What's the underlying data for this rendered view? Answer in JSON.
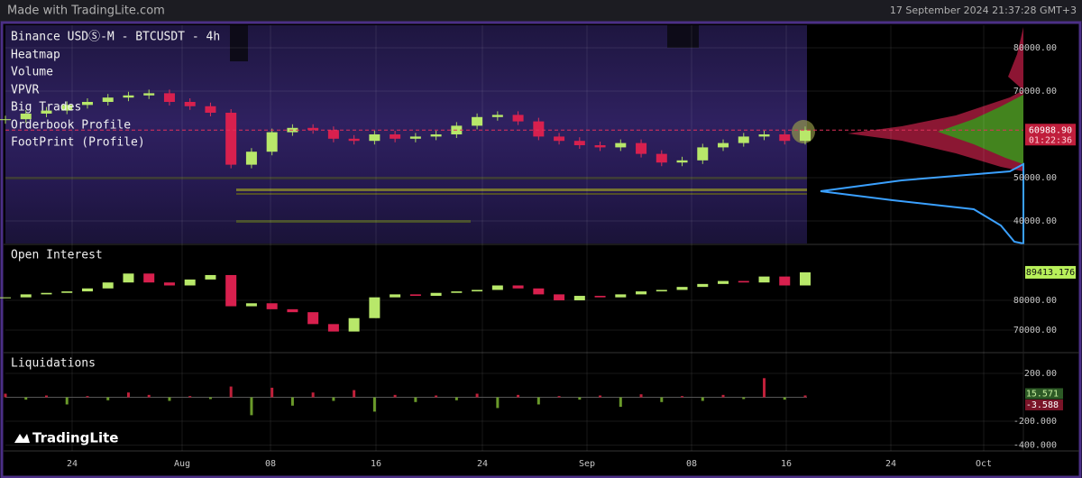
{
  "header": {
    "watermark": "Made with TradingLite.com",
    "timestamp": "17 September 2024 21:37:28 GMT+3"
  },
  "main_panel": {
    "title": "Binance USDⓈ-M - BTCUSDT - 4h",
    "layers": [
      "Heatmap",
      "Volume",
      "VPVR",
      "Big Trades",
      "Orderbook Profile",
      "FootPrint (Profile)"
    ],
    "ylim": [
      34800,
      85200
    ],
    "yticks": [
      {
        "value": 80000,
        "label": "80000.00"
      },
      {
        "value": 70000,
        "label": "70000.00"
      },
      {
        "value": 50000,
        "label": "50000.00"
      },
      {
        "value": 40000,
        "label": "40000.00"
      }
    ],
    "last_price": {
      "value": 60988.9,
      "label": "60988.90"
    },
    "countdown": "01:22:36",
    "closes": [
      63500,
      64800,
      65500,
      66800,
      67500,
      68500,
      69000,
      69500,
      67500,
      66500,
      65000,
      53000,
      56000,
      60500,
      61500,
      61000,
      59000,
      58500,
      60000,
      59000,
      59500,
      60000,
      62000,
      64000,
      64500,
      63000,
      59500,
      58500,
      57500,
      57000,
      58000,
      55500,
      53500,
      54000,
      57000,
      58000,
      59500,
      60000,
      58500,
      60988.9
    ]
  },
  "open_interest": {
    "title": "Open Interest",
    "ylim": [
      62700,
      98500
    ],
    "yticks": [
      {
        "value": 80000,
        "label": "80000.00"
      },
      {
        "value": 70000,
        "label": "70000.00"
      }
    ],
    "last": {
      "value": 89413.176,
      "label": "89413.176"
    },
    "values": [
      81000,
      82000,
      82500,
      83000,
      84000,
      86000,
      89000,
      86000,
      85000,
      87000,
      88500,
      78000,
      79000,
      77000,
      76000,
      72000,
      69500,
      74000,
      81000,
      82000,
      81500,
      82500,
      83000,
      83500,
      85000,
      84000,
      82000,
      80000,
      81500,
      81000,
      82000,
      83000,
      83500,
      84500,
      85500,
      86500,
      86000,
      88000,
      85000,
      89413.176
    ]
  },
  "liquidations": {
    "title": "Liquidations",
    "ylim": [
      -449,
      366
    ],
    "yticks": [
      {
        "value": 200,
        "label": "200.00"
      },
      {
        "value": -200,
        "label": "-200.000"
      },
      {
        "value": -400,
        "label": "-400.000"
      }
    ],
    "shorts_last": {
      "value": 15.571,
      "label": "15.571"
    },
    "longs_last": {
      "value": -3.588,
      "label": "-3.588"
    },
    "values": [
      30,
      -20,
      15,
      -60,
      10,
      -25,
      40,
      20,
      -30,
      10,
      -15,
      90,
      -150,
      80,
      -70,
      40,
      -30,
      60,
      -120,
      20,
      -40,
      15,
      -25,
      30,
      -90,
      20,
      -60,
      10,
      -20,
      15,
      -80,
      25,
      -40,
      10,
      -30,
      20,
      -15,
      160,
      -20,
      15.571
    ]
  },
  "x_axis": {
    "labels": [
      "24",
      "Aug",
      "08",
      "16",
      "24",
      "Sep",
      "08",
      "16",
      "24",
      "Oct"
    ]
  },
  "logo": "TradingLite"
}
